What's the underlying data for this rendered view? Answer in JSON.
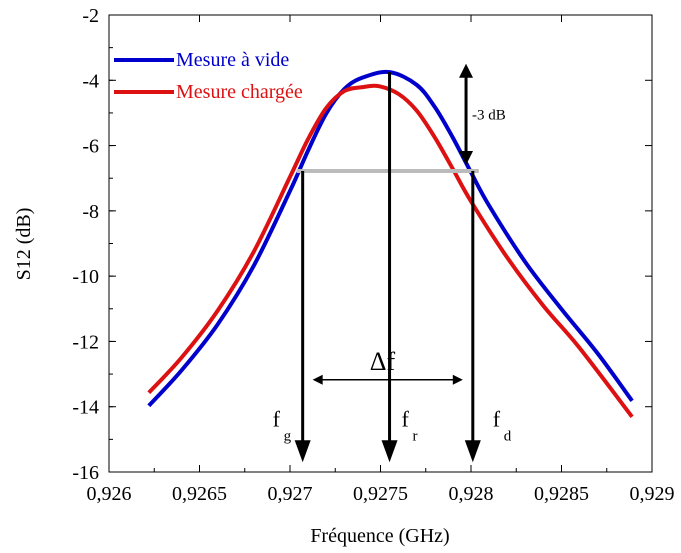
{
  "chart_data": {
    "type": "line",
    "title": "",
    "xlabel": "Fréquence (GHz)",
    "ylabel": "S12 (dB)",
    "xlim": [
      0.926,
      0.929
    ],
    "ylim": [
      -16,
      -2
    ],
    "x_ticks": [
      0.926,
      0.9265,
      0.927,
      0.9275,
      0.928,
      0.9285,
      0.929
    ],
    "x_tick_labels": [
      "0,926",
      "0,9265",
      "0,927",
      "0,9275",
      "0,928",
      "0,9285",
      "0,929"
    ],
    "y_ticks": [
      -16,
      -14,
      -12,
      -10,
      -8,
      -6,
      -4,
      -2
    ],
    "y_tick_labels": [
      "-16",
      "-14",
      "-12",
      "-10",
      "-8",
      "-6",
      "-4",
      "-2"
    ],
    "grid": false,
    "legend": "top-left",
    "series": [
      {
        "name": "Mesure à vide",
        "color": "#0000cc",
        "x": [
          0.92622,
          0.9264,
          0.9266,
          0.9268,
          0.927,
          0.9271,
          0.9272,
          0.9273,
          0.9274,
          0.92755,
          0.9277,
          0.9278,
          0.9279,
          0.928,
          0.9281,
          0.9283,
          0.9285,
          0.9287,
          0.92889
        ],
        "y": [
          -13.97,
          -12.89,
          -11.48,
          -9.68,
          -7.39,
          -6.15,
          -5.02,
          -4.27,
          -3.92,
          -3.75,
          -4.14,
          -4.82,
          -5.76,
          -6.82,
          -7.84,
          -9.57,
          -11.01,
          -12.37,
          -13.82
        ]
      },
      {
        "name": "Mesure chargée",
        "color": "#dd1111",
        "x": [
          0.92622,
          0.9264,
          0.9266,
          0.9268,
          0.927,
          0.9271,
          0.9272,
          0.9273,
          0.9274,
          0.92749,
          0.9276,
          0.9277,
          0.9278,
          0.9279,
          0.928,
          0.9282,
          0.9284,
          0.9286,
          0.92889
        ],
        "y": [
          -13.57,
          -12.5,
          -11.06,
          -9.25,
          -6.96,
          -5.8,
          -4.85,
          -4.33,
          -4.21,
          -4.18,
          -4.42,
          -4.93,
          -5.75,
          -6.72,
          -7.71,
          -9.43,
          -10.91,
          -12.2,
          -14.31
        ]
      }
    ],
    "annotations": {
      "bandwidth_level": -6.78,
      "bandwidth_x": [
        0.92707,
        0.92801
      ],
      "arrow_3db": {
        "x": 0.92784,
        "y": [
          -3.8,
          -6.78
        ],
        "label": "-3 dB"
      },
      "delta_f": {
        "label": "Δf",
        "x": [
          0.92707,
          0.92801
        ],
        "y": -12.5
      },
      "f_g": {
        "x": 0.92707,
        "label": "f",
        "sub": "g"
      },
      "f_r": {
        "x": 0.92755,
        "label": "f",
        "sub": "r"
      },
      "f_d": {
        "x": 0.92801,
        "label": "f",
        "sub": "d"
      }
    }
  }
}
